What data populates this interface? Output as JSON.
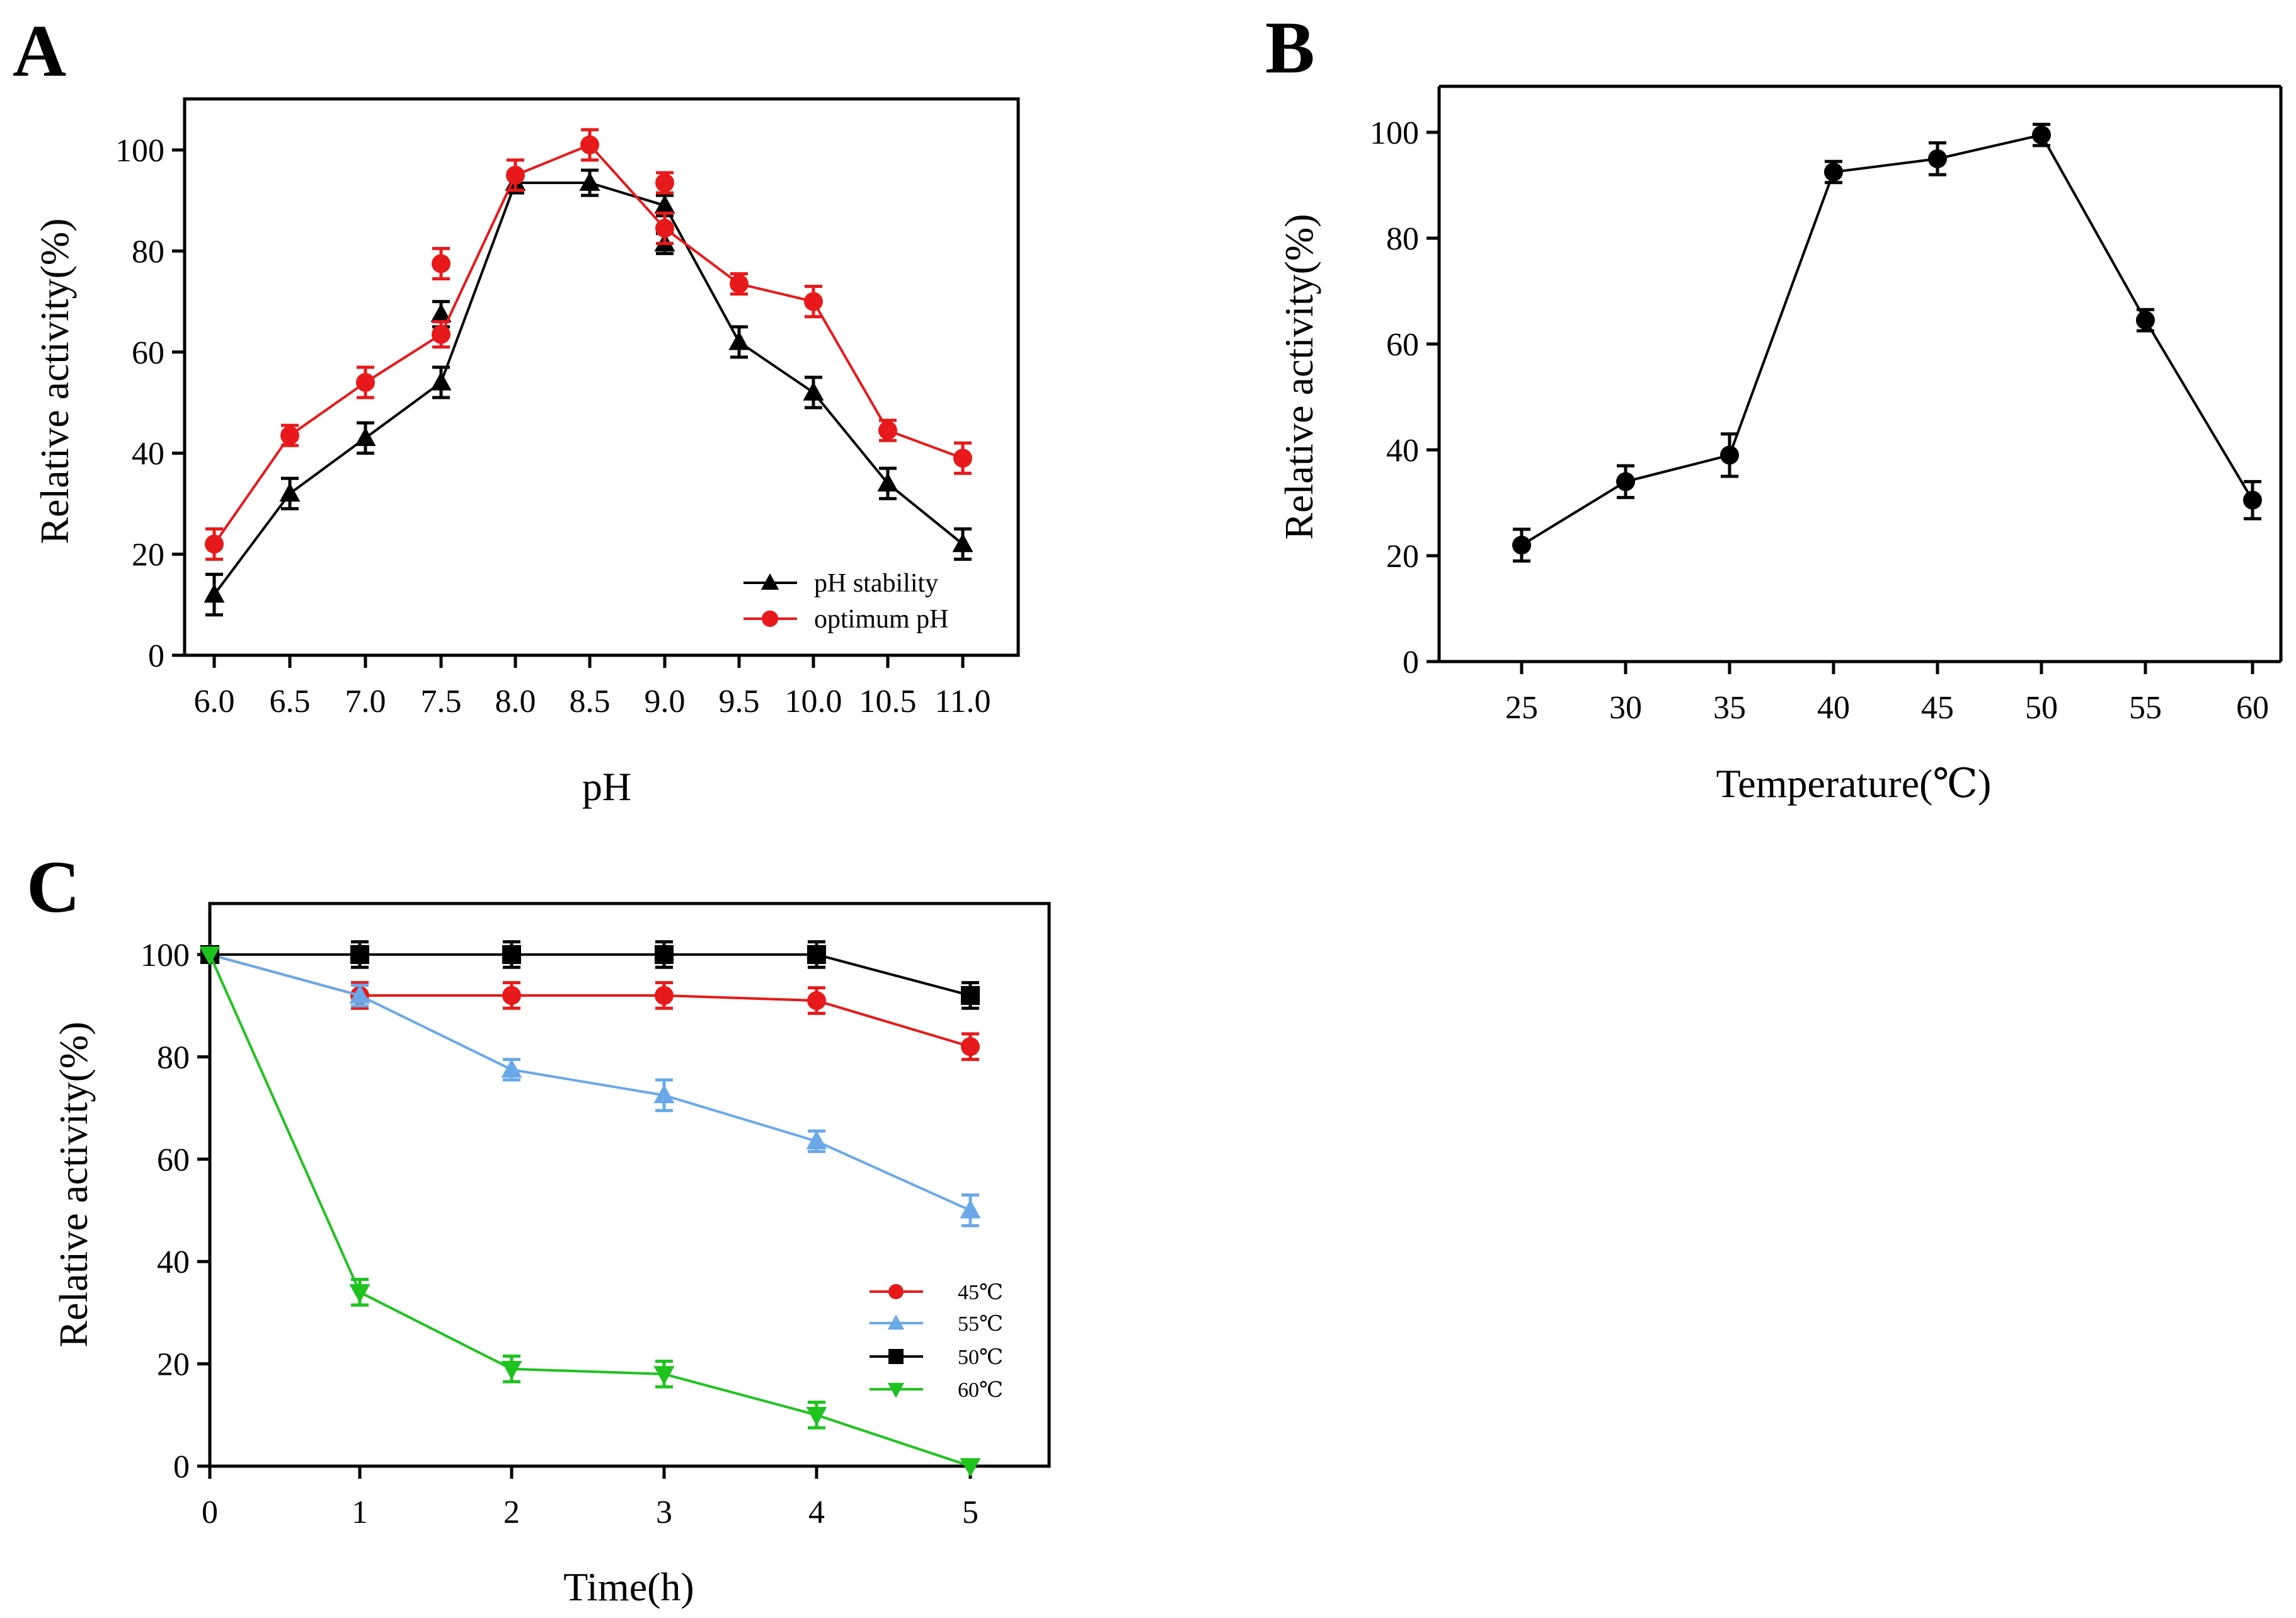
{
  "chart_data": [
    {
      "id": "A",
      "type": "line",
      "panel_label": "A",
      "xlabel": "pH",
      "ylabel": "Relative activity(%)",
      "ylim": [
        0,
        110
      ],
      "yticks": [
        0,
        20,
        40,
        60,
        80,
        100
      ],
      "categories": [
        "6.0",
        "6.5",
        "7.0",
        "7.5",
        "8.0",
        "8.5",
        "9.0",
        "9.5",
        "10.0",
        "10.5",
        "11.0"
      ],
      "x": [
        6.0,
        6.5,
        7.0,
        7.5,
        8.0,
        8.5,
        9.0,
        9.5,
        10.0,
        10.5,
        11.0
      ],
      "legend": "bottom-right",
      "series": [
        {
          "name": "pH stability",
          "color": "#000000",
          "marker": "triangle-up",
          "values": [
            12,
            32,
            43,
            54,
            93.5,
            93.5,
            89,
            62,
            52,
            34,
            22
          ],
          "errors": [
            4,
            3,
            3,
            3,
            2,
            2.5,
            2,
            3,
            3,
            3,
            3
          ],
          "extra_points": [
            {
              "x": 7.5,
              "y": 67.5,
              "err": 2.5
            },
            {
              "x": 9.0,
              "y": 81.5,
              "err": 2
            }
          ]
        },
        {
          "name": "optimum pH",
          "color": "#e8191a",
          "marker": "circle",
          "values": [
            22,
            43.5,
            54,
            63.5,
            95,
            101,
            84.5,
            73.5,
            70,
            44.5,
            39
          ],
          "errors": [
            3,
            2,
            3,
            2.5,
            3,
            3,
            3,
            2,
            3,
            2,
            3
          ],
          "extra_points": [
            {
              "x": 7.5,
              "y": 77.5,
              "err": 3
            },
            {
              "x": 9.0,
              "y": 93.5,
              "err": 2
            }
          ]
        }
      ]
    },
    {
      "id": "B",
      "type": "line",
      "panel_label": "B",
      "xlabel": "Temperature(℃)",
      "ylabel": "Relative activity(%)",
      "ylim": [
        0,
        110
      ],
      "yticks": [
        0,
        20,
        40,
        60,
        80,
        100
      ],
      "categories": [
        "25",
        "30",
        "35",
        "40",
        "45",
        "50",
        "55",
        "60"
      ],
      "x": [
        25,
        30,
        35,
        40,
        45,
        50,
        55,
        60
      ],
      "series": [
        {
          "name": "Relative activity",
          "color": "#000000",
          "marker": "circle",
          "values": [
            22,
            34,
            39,
            92.5,
            95,
            99.5,
            64.5,
            30.5
          ],
          "errors": [
            3,
            3,
            4,
            2,
            3,
            2,
            2,
            3.5
          ]
        }
      ]
    },
    {
      "id": "C",
      "type": "line",
      "panel_label": "C",
      "xlabel": "Time(h)",
      "ylabel": "Relative activity(%)",
      "ylim": [
        0,
        110
      ],
      "yticks": [
        0,
        20,
        40,
        60,
        80,
        100
      ],
      "categories": [
        "0",
        "1",
        "2",
        "3",
        "4",
        "5"
      ],
      "x": [
        0,
        1,
        2,
        3,
        4,
        5
      ],
      "legend": "bottom-right",
      "series": [
        {
          "name": "45℃",
          "color": "#e8191a",
          "marker": "circle",
          "values": [
            100,
            92,
            92,
            92,
            91,
            82
          ],
          "errors": [
            0,
            2.5,
            2.5,
            2.5,
            2.5,
            2.5
          ]
        },
        {
          "name": "55℃",
          "color": "#6aa9e9",
          "marker": "triangle-up",
          "values": [
            100,
            92,
            77.5,
            72.5,
            63.5,
            50
          ],
          "errors": [
            0,
            2,
            2,
            3,
            2,
            3
          ]
        },
        {
          "name": "50℃",
          "color": "#000000",
          "marker": "square",
          "values": [
            100,
            100,
            100,
            100,
            100,
            92
          ],
          "errors": [
            0,
            2.5,
            2.5,
            2.5,
            2.5,
            2.5
          ]
        },
        {
          "name": "60℃",
          "color": "#1ec31e",
          "marker": "triangle-down",
          "values": [
            100,
            34,
            19,
            18,
            10,
            0
          ],
          "errors": [
            0,
            2.5,
            2.5,
            2.5,
            2.5,
            0
          ]
        }
      ]
    }
  ]
}
